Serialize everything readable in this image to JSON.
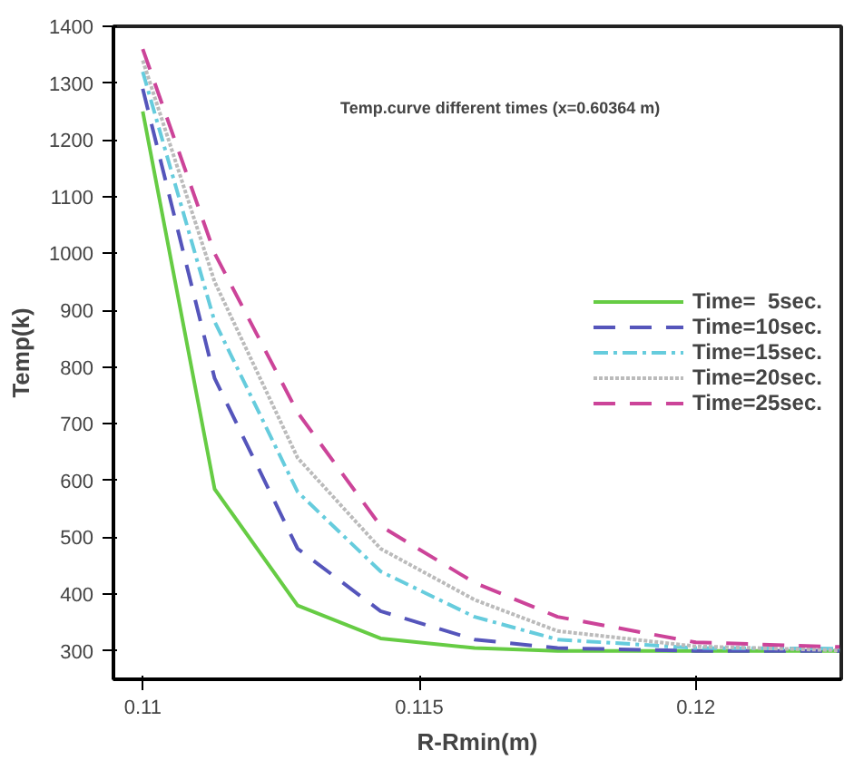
{
  "chart_data": {
    "type": "line",
    "title": "Temp.curve different times (x=0.60364 m)",
    "xlabel": "R-Rmin(m)",
    "ylabel": "Temp(k)",
    "x": [
      0.11,
      0.1113,
      0.1128,
      0.1143,
      0.116,
      0.1175,
      0.12,
      0.1226
    ],
    "series": [
      {
        "name": "Time=  5sec.",
        "color": "#66cc44",
        "line_style": "solid",
        "values": [
          1250,
          585,
          380,
          322,
          305,
          300,
          300,
          300
        ]
      },
      {
        "name": "Time=10sec.",
        "color": "#5555bb",
        "line_style": "dashed",
        "values": [
          1290,
          780,
          480,
          370,
          320,
          305,
          300,
          300
        ]
      },
      {
        "name": "Time=15sec.",
        "color": "#66ccdd",
        "line_style": "dashdot",
        "values": [
          1320,
          880,
          580,
          440,
          360,
          320,
          305,
          304
        ]
      },
      {
        "name": "Time=20sec.",
        "color": "#bbbbbb",
        "line_style": "dotted",
        "values": [
          1340,
          950,
          640,
          480,
          390,
          335,
          308,
          301
        ]
      },
      {
        "name": "Time=25sec.",
        "color": "#cc4499",
        "line_style": "dashed",
        "values": [
          1360,
          1000,
          720,
          520,
          420,
          360,
          315,
          307
        ]
      }
    ],
    "xlim": [
      0.10947,
      0.12263
    ],
    "ylim": [
      250,
      1400
    ],
    "xticks": [
      0.11,
      0.115,
      0.12
    ],
    "yticks": [
      300,
      400,
      500,
      600,
      700,
      800,
      900,
      1000,
      1100,
      1200,
      1300,
      1400
    ],
    "grid": false,
    "legend": "right",
    "marker": "none"
  }
}
